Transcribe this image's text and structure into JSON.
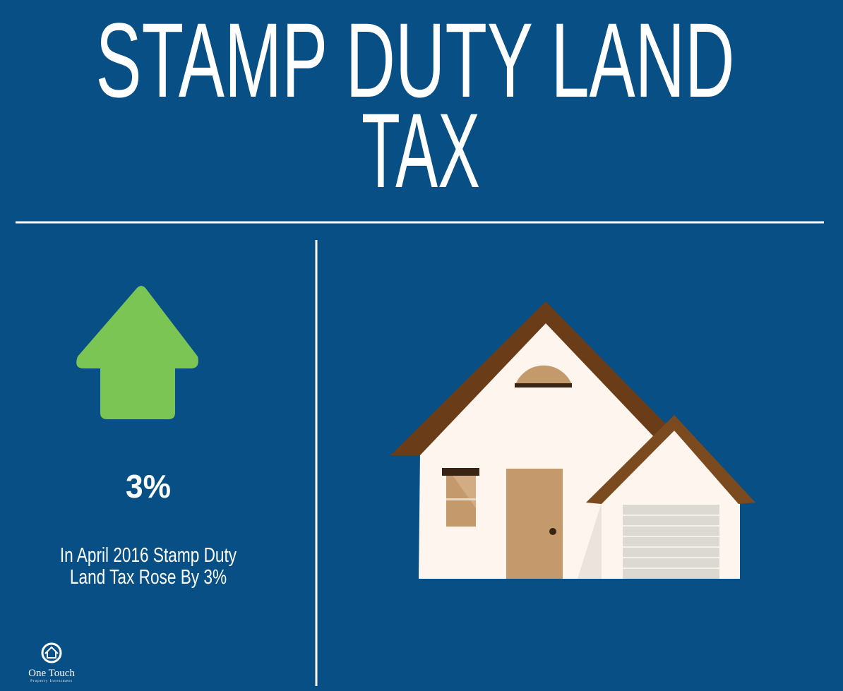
{
  "header": {
    "title_lines": [
      "STAMP DUTY LAND",
      "TAX"
    ]
  },
  "stat": {
    "value": "3%",
    "caption": "In April 2016 Stamp Duty Land Tax Rose By 3%"
  },
  "logo": {
    "name": "One Touch",
    "tagline": "Property Investment"
  }
}
